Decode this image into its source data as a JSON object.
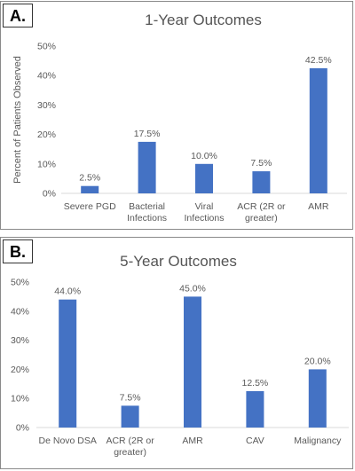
{
  "chart_data": [
    {
      "type": "bar",
      "panel_label": "A.",
      "title": "1-Year Outcomes",
      "ylabel": "Percent of Patients Observed",
      "xlabel": "",
      "ylim": [
        0,
        50
      ],
      "yticks": [
        "0%",
        "10%",
        "20%",
        "30%",
        "40%",
        "50%"
      ],
      "categories": [
        [
          "Severe PGD"
        ],
        [
          "Bacterial",
          "Infections"
        ],
        [
          "Viral",
          "Infections"
        ],
        [
          "ACR (2R or",
          "greater)"
        ],
        [
          "AMR"
        ]
      ],
      "values": [
        2.5,
        17.5,
        10.0,
        7.5,
        42.5
      ],
      "value_labels": [
        "2.5%",
        "17.5%",
        "10.0%",
        "7.5%",
        "42.5%"
      ],
      "bar_color": "#4472c4",
      "grid": false
    },
    {
      "type": "bar",
      "panel_label": "B.",
      "title": "5-Year Outcomes",
      "ylabel": "",
      "xlabel": "",
      "ylim": [
        0,
        50
      ],
      "yticks": [
        "0%",
        "10%",
        "20%",
        "30%",
        "40%",
        "50%"
      ],
      "categories": [
        [
          "De Novo DSA"
        ],
        [
          "ACR (2R or",
          "greater)"
        ],
        [
          "AMR"
        ],
        [
          "CAV"
        ],
        [
          "Malignancy"
        ]
      ],
      "values": [
        44.0,
        7.5,
        45.0,
        12.5,
        20.0
      ],
      "value_labels": [
        "44.0%",
        "7.5%",
        "45.0%",
        "12.5%",
        "20.0%"
      ],
      "bar_color": "#4472c4",
      "grid": false
    }
  ]
}
